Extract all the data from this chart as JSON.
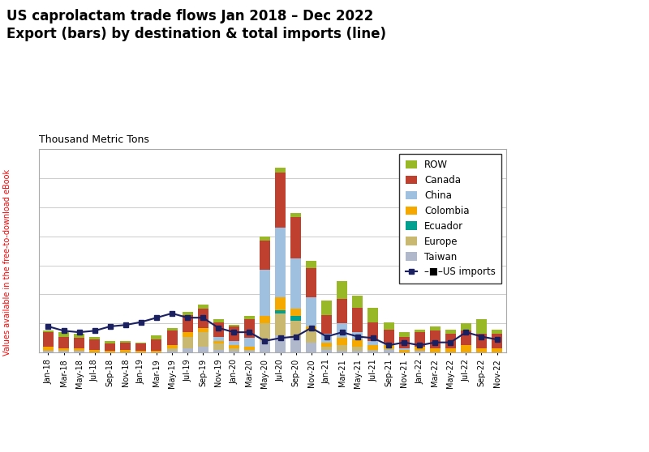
{
  "title": "US caprolactam trade flows Jan 2018 – Dec 2022\nExport (bars) by destination & total imports (line)",
  "ylabel_label": "Thousand Metric Tons",
  "background_color": "#ffffff",
  "bar_colors": {
    "Taiwan": "#b0b8cc",
    "Europe": "#c8b870",
    "Ecuador": "#00a090",
    "Colombia": "#f5a800",
    "China": "#a0c0e0",
    "Canada": "#c04030",
    "ROW": "#98b828"
  },
  "line_color": "#1a2060",
  "months": [
    "Jan-18",
    "Mar-18",
    "May-18",
    "Jul-18",
    "Sep-18",
    "Nov-18",
    "Jan-19",
    "Mar-19",
    "May-19",
    "Jul-19",
    "Sep-19",
    "Nov-19",
    "Jan-20",
    "Mar-20",
    "May-20",
    "Jul-20",
    "Sep-20",
    "Nov-20",
    "Jan-21",
    "Mar-21",
    "May-21",
    "Jul-21",
    "Sep-21",
    "Nov-21",
    "Jan-22",
    "Mar-22",
    "May-22",
    "Jul-22",
    "Sep-22",
    "Nov-22"
  ],
  "Taiwan": [
    0.1,
    0.1,
    0.1,
    0.0,
    0.0,
    0.0,
    0.0,
    0.0,
    0.1,
    0.3,
    0.4,
    0.2,
    0.1,
    0.1,
    0.8,
    1.2,
    1.0,
    0.7,
    0.2,
    0.1,
    0.1,
    0.1,
    0.2,
    0.0,
    0.1,
    0.0,
    0.0,
    0.0,
    0.0,
    0.0
  ],
  "Europe": [
    0.0,
    0.0,
    0.0,
    0.0,
    0.0,
    0.0,
    0.0,
    0.0,
    0.2,
    0.8,
    1.0,
    0.4,
    0.2,
    0.1,
    1.2,
    1.5,
    1.2,
    0.8,
    0.2,
    0.4,
    0.3,
    0.1,
    0.1,
    0.0,
    0.0,
    0.0,
    0.0,
    0.0,
    0.0,
    0.0
  ],
  "Ecuador": [
    0.0,
    0.0,
    0.0,
    0.0,
    0.0,
    0.0,
    0.0,
    0.0,
    0.0,
    0.0,
    0.0,
    0.0,
    0.0,
    0.0,
    0.0,
    0.2,
    0.3,
    0.0,
    0.0,
    0.0,
    0.0,
    0.0,
    0.0,
    0.0,
    0.0,
    0.0,
    0.0,
    0.0,
    0.0,
    0.0
  ],
  "Colombia": [
    0.3,
    0.2,
    0.2,
    0.2,
    0.1,
    0.2,
    0.1,
    0.1,
    0.2,
    0.3,
    0.3,
    0.2,
    0.2,
    0.2,
    0.5,
    0.9,
    0.5,
    0.3,
    0.3,
    0.5,
    0.5,
    0.3,
    0.2,
    0.2,
    0.3,
    0.3,
    0.3,
    0.5,
    0.3,
    0.3
  ],
  "China": [
    0.0,
    0.0,
    0.0,
    0.0,
    0.0,
    0.0,
    0.0,
    0.0,
    0.0,
    0.0,
    0.0,
    0.3,
    0.3,
    0.6,
    3.2,
    4.8,
    3.5,
    2.0,
    0.6,
    1.0,
    0.5,
    0.3,
    0.1,
    0.1,
    0.0,
    0.0,
    0.0,
    0.0,
    0.0,
    0.0
  ],
  "Canada": [
    1.0,
    0.8,
    0.7,
    0.7,
    0.5,
    0.5,
    0.5,
    0.8,
    1.0,
    1.2,
    1.3,
    1.0,
    1.0,
    1.3,
    2.0,
    3.8,
    2.8,
    2.0,
    1.3,
    1.7,
    1.7,
    1.3,
    1.0,
    0.8,
    1.0,
    1.2,
    1.0,
    1.0,
    1.0,
    1.0
  ],
  "ROW": [
    0.1,
    0.3,
    0.3,
    0.2,
    0.2,
    0.1,
    0.1,
    0.3,
    0.2,
    0.2,
    0.3,
    0.2,
    0.1,
    0.2,
    0.3,
    0.3,
    0.3,
    0.5,
    1.0,
    1.2,
    0.8,
    1.0,
    0.5,
    0.3,
    0.2,
    0.3,
    0.3,
    0.5,
    1.0,
    0.3
  ],
  "US_imports": [
    1.8,
    1.5,
    1.4,
    1.5,
    1.8,
    1.9,
    2.1,
    2.4,
    2.7,
    2.4,
    2.4,
    1.7,
    1.4,
    1.4,
    0.8,
    1.0,
    1.1,
    1.7,
    1.1,
    1.4,
    1.1,
    1.0,
    0.5,
    0.7,
    0.5,
    0.7,
    0.7,
    1.4,
    1.1,
    0.9
  ],
  "ylim": [
    0,
    14
  ],
  "yticks": [
    0,
    2,
    4,
    6,
    8,
    10,
    12,
    14
  ]
}
